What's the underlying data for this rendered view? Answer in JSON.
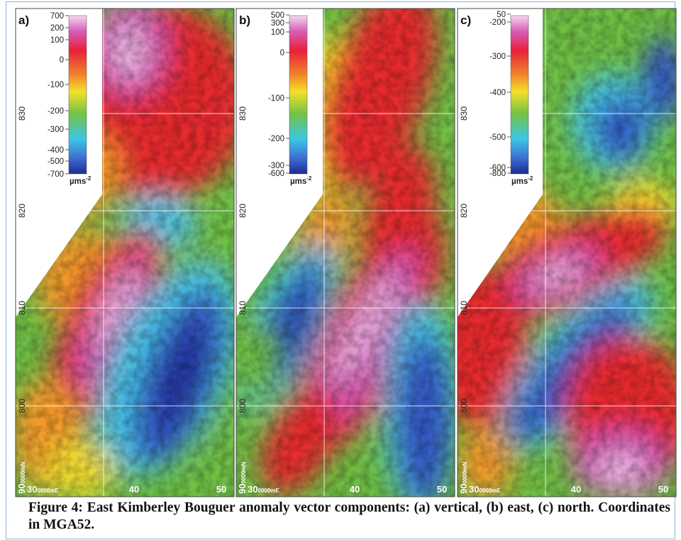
{
  "panels": [
    {
      "label": "a)",
      "colorbar_ticks": [
        "700",
        "200",
        "100",
        "0",
        "-100",
        "-200",
        "-300",
        "-400",
        "-500",
        "-700"
      ],
      "unit": "µms",
      "unit_exponent": "-2",
      "northing_labels": [
        "830",
        "820",
        "810",
        "800"
      ],
      "origin_northing": {
        "major": "90",
        "minor": "0000mN"
      },
      "origin_easting": {
        "major": "30",
        "minor": "0000mE"
      },
      "easting_labels": [
        "40",
        "50"
      ]
    },
    {
      "label": "b)",
      "colorbar_ticks": [
        "500",
        "300",
        "100",
        "0",
        "-100",
        "-200",
        "-300",
        "-600"
      ],
      "unit": "µms",
      "unit_exponent": "-2",
      "northing_labels": [
        "830",
        "820",
        "810",
        "800"
      ],
      "origin_northing": {
        "major": "90",
        "minor": "0000mN"
      },
      "origin_easting": {
        "major": "30",
        "minor": "0000mE"
      },
      "easting_labels": [
        "40",
        "50"
      ]
    },
    {
      "label": "c)",
      "colorbar_ticks": [
        "50",
        "-200",
        "-300",
        "-400",
        "-500",
        "-600",
        "-800"
      ],
      "unit": "µms",
      "unit_exponent": "-2",
      "northing_labels": [
        "830",
        "820",
        "810",
        "800"
      ],
      "origin_northing": {
        "major": "90",
        "minor": "0000mN"
      },
      "origin_easting": {
        "major": "30",
        "minor": "0000mE"
      },
      "easting_labels": [
        "40",
        "50"
      ]
    }
  ],
  "caption": "Figure 4: East Kimberley Bouguer anomaly vector components: (a) vertical, (b) east, (c) north. Coordinates in MGA52."
}
